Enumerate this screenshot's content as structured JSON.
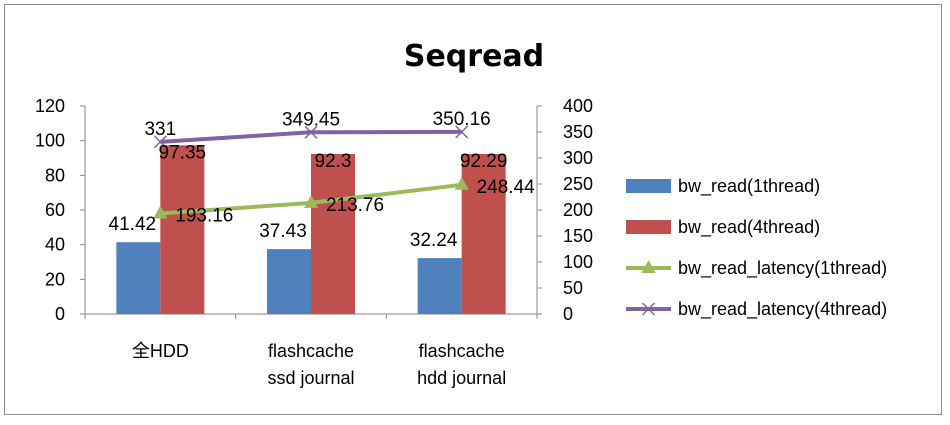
{
  "chart_data": {
    "type": "bar",
    "title": "Seqread",
    "xlabel": "",
    "ylabel": "",
    "ylim": [
      0,
      120
    ],
    "y2lim": [
      0,
      400
    ],
    "yticks": [
      "0",
      "20",
      "40",
      "60",
      "80",
      "100",
      "120"
    ],
    "y2ticks": [
      "0",
      "50",
      "100",
      "150",
      "200",
      "250",
      "300",
      "350",
      "400"
    ],
    "categories": [
      [
        "全HDD"
      ],
      [
        "flashcache",
        "ssd journal"
      ],
      [
        "flashcache",
        "hdd journal"
      ]
    ],
    "series": [
      {
        "name": "bw_read(1thread)",
        "type": "bar",
        "axis": "left",
        "color": "#4f81bd",
        "values": [
          41.42,
          37.43,
          32.24
        ],
        "labels": [
          "41.42",
          "37.43",
          "32.24"
        ]
      },
      {
        "name": "bw_read(4thread)",
        "type": "bar",
        "axis": "left",
        "color": "#c0504d",
        "values": [
          97.35,
          92.3,
          92.29
        ],
        "labels": [
          "97.35",
          "92.3",
          "92.29"
        ]
      },
      {
        "name": "bw_read_latency(1thread)",
        "type": "line",
        "axis": "right",
        "color": "#9bbb59",
        "marker": "triangle",
        "values": [
          193.16,
          213.76,
          248.44
        ],
        "labels": [
          "193.16",
          "213.76",
          "248.44"
        ]
      },
      {
        "name": "bw_read_latency(4thread)",
        "type": "line",
        "axis": "right",
        "color": "#8064a2",
        "marker": "x",
        "values": [
          331,
          349.45,
          350.16
        ],
        "labels": [
          "331",
          "349.45",
          "350.16"
        ]
      }
    ],
    "grid": false,
    "legend_position": "right"
  }
}
